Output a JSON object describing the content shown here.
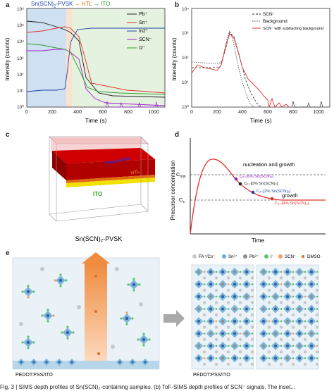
{
  "panels": {
    "a": {
      "letter": "a",
      "header": {
        "part1": "Sn(SCN)",
        "sub": "2",
        "part2": "-PVSK",
        "arrow1": "→",
        "htl": "HTL",
        "arrow2": "→",
        "ito": "ITO"
      },
      "ylabel": "Intensity (counts)",
      "xlabel": "Time (s)",
      "yticks": [
        "10⁰",
        "10¹",
        "10²",
        "10³",
        "10⁴",
        "10⁵",
        "10⁶"
      ],
      "xticks": [
        "0",
        "200",
        "400",
        "600",
        "800",
        "1000"
      ],
      "legend": [
        "Pb⁺",
        "Sn⁺",
        "In2⁺",
        "SCN⁻",
        "I2⁻"
      ],
      "colors": {
        "pb": "#222222",
        "sn": "#e0302a",
        "in": "#1e3fa8",
        "scn": "#a020d0",
        "i": "#2aa02a",
        "zone1": "#cfe0f2",
        "zone2": "#fbe2cf",
        "zone3": "#e6f2e0"
      }
    },
    "b": {
      "letter": "b",
      "ylabel": "Intensity (counts)",
      "xlabel": "Time (s)",
      "yticks": [
        "10⁰",
        "10¹",
        "10²",
        "10³",
        "10⁴"
      ],
      "xticks": [
        "0",
        "200",
        "400",
        "600",
        "800",
        "1000"
      ],
      "legend": [
        "SCN⁻",
        "Background",
        "SCN⁻ with subtracting background"
      ],
      "colors": {
        "scn": "#222222",
        "bg": "#444444",
        "sub": "#e0302a"
      }
    },
    "c": {
      "letter": "c",
      "labels": {
        "perovskite": "Perovskite",
        "htl": "HTL",
        "ito": "ITO"
      },
      "caption": "Sn(SCN)₂-PVSK",
      "colors": {
        "red": "#d00000",
        "htl": "#e06a10",
        "ito": "#f2e000"
      }
    },
    "d": {
      "letter": "d",
      "ylabel": "Precursor concentration",
      "xlabel": "Time",
      "levels": {
        "cmin": "C",
        "cmin_sub": "min",
        "cs": "C",
        "cs_sub": "s"
      },
      "regions": {
        "nucleation": "nucleation and growth",
        "growth": "growth"
      },
      "points": [
        "C₆₊[6% Sn(SCN)₂]",
        "C₀₊[0% Sn(SCN)₂]",
        "C₂₊[2% Sn(SCN)₂]",
        "C₄₊[4% Sn(SCN)₂]"
      ],
      "colors": {
        "curve": "#e0302a",
        "p6": "#a020d0",
        "p0": "#222222",
        "p2": "#1e3fa8",
        "p4": "#e0302a"
      }
    },
    "e": {
      "letter": "e",
      "legend": [
        "FA⁺/Cs⁺",
        "Sn²⁺",
        "Pb²⁺",
        "I⁻",
        "SCN⁻",
        "DMSO"
      ],
      "substrate_left": "PEDOT:PSS/ITO",
      "substrate_right": "PEDOT:PSS/ITO",
      "colors": {
        "fa": "#c8c8c8",
        "sn": "#6fa8dc",
        "pb": "#8e8e8e",
        "i": "#5cc46c",
        "scn": "#f0a060",
        "dmso": "#e07020",
        "octa": "#7fb6d8",
        "bg": "#eaf2f8"
      }
    }
  },
  "caption": "Fig. 3 | SIMS depth profiles of Sn(SCN)₂-containing samples. (b) ToF-SIMS depth profiles of SCN⁻ signals. The inset..."
}
